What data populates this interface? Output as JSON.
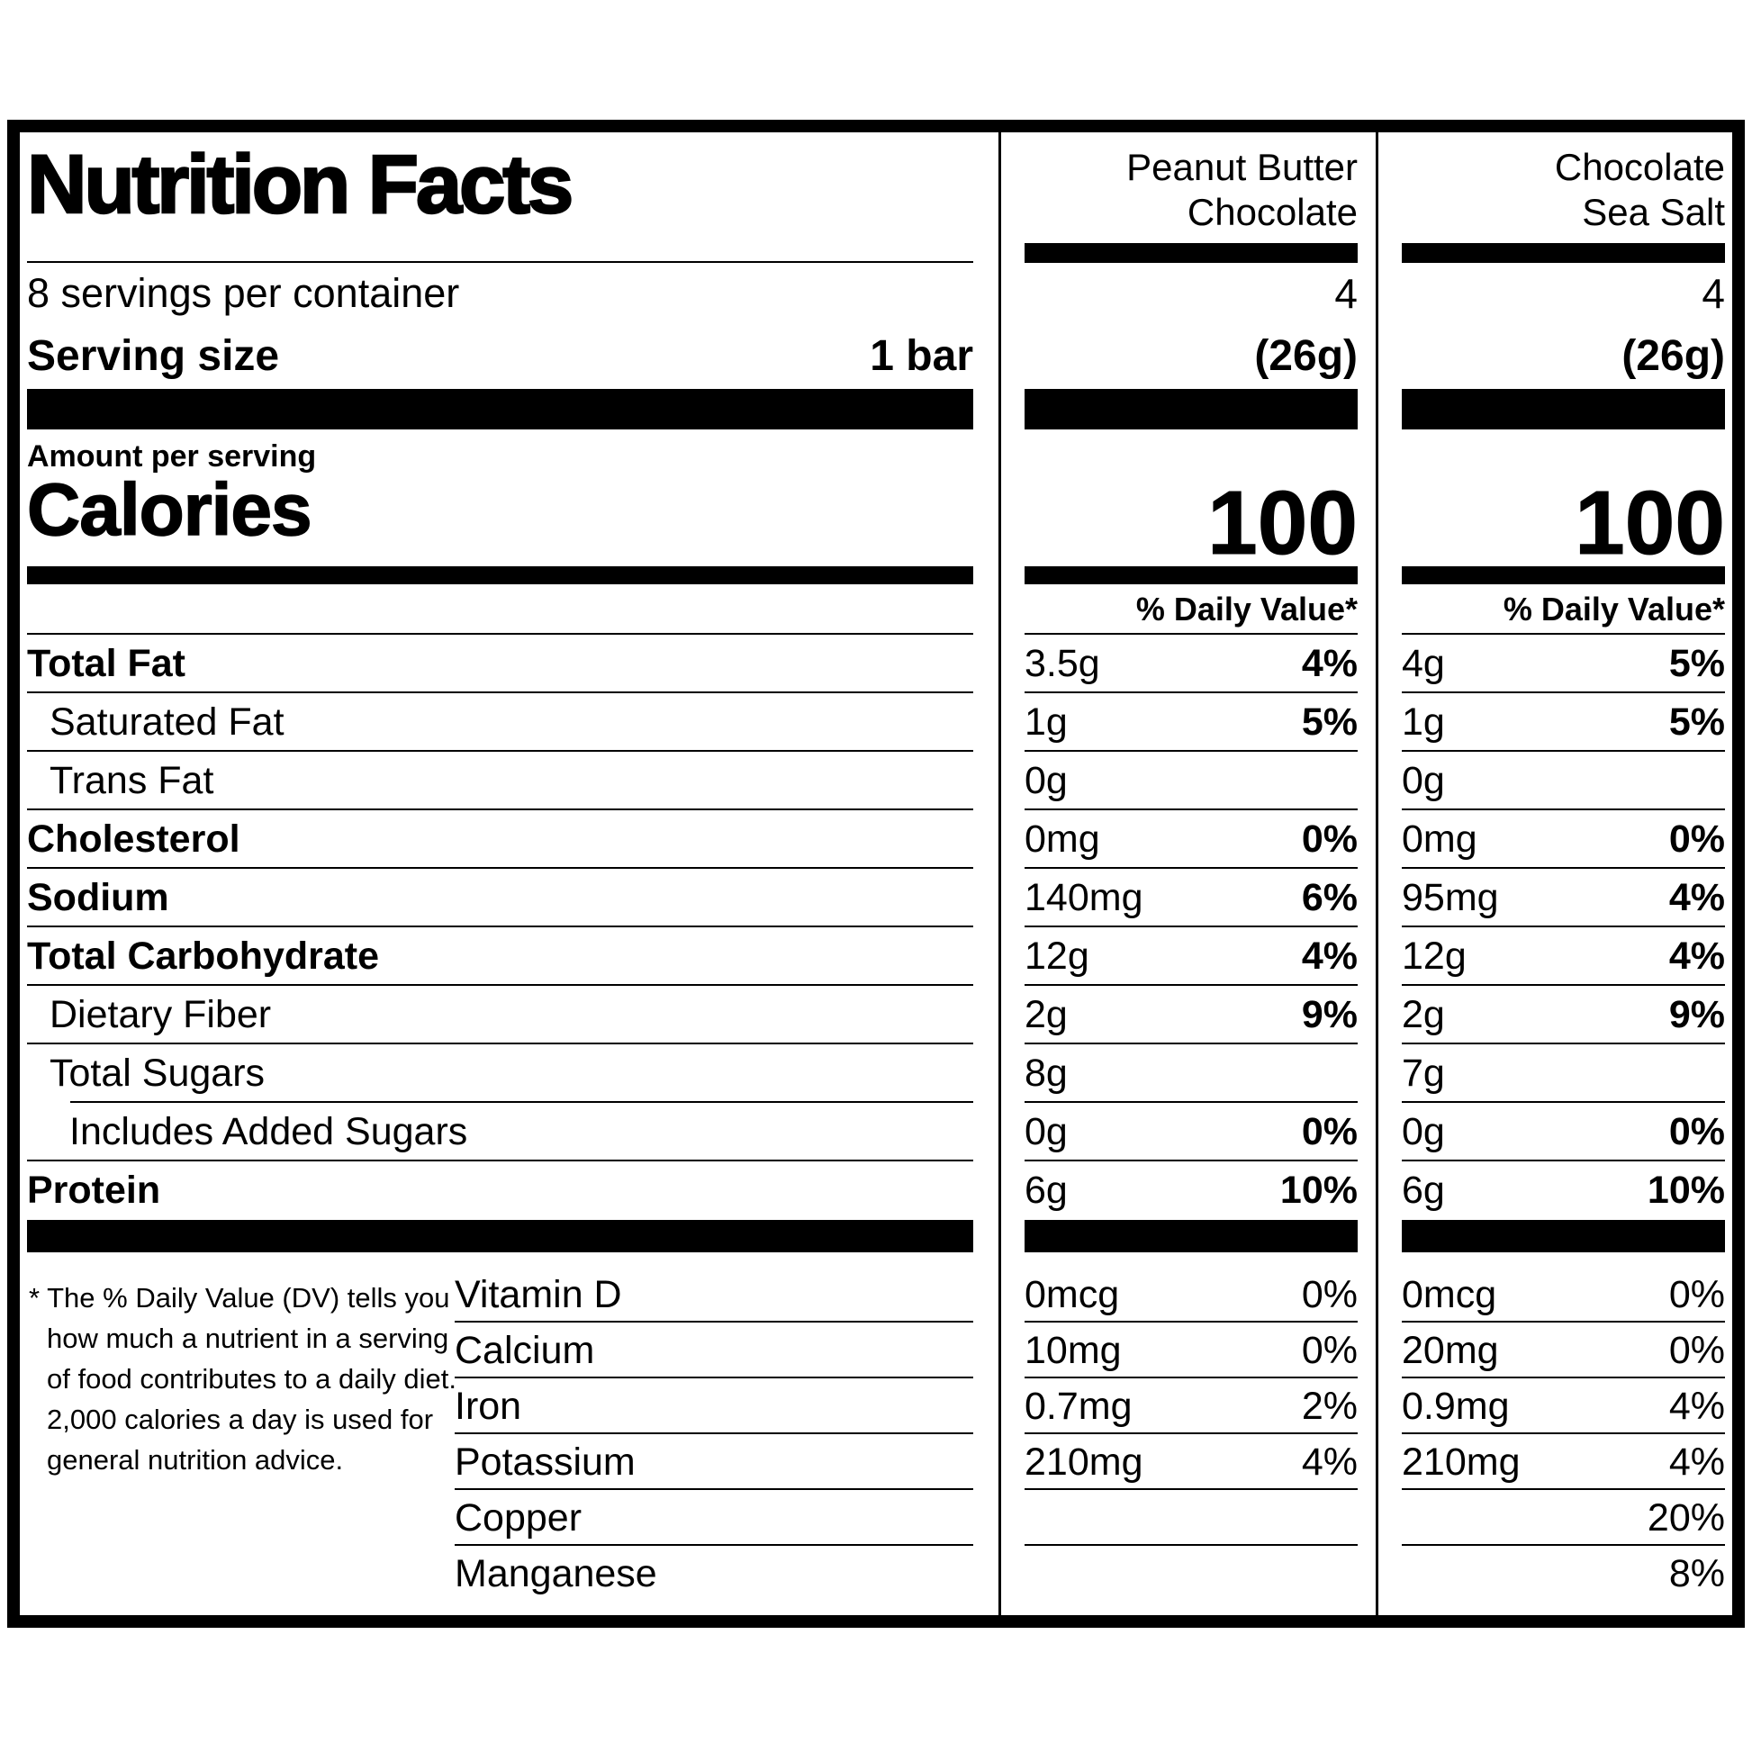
{
  "colors": {
    "ink": "#000000",
    "paper": "#ffffff"
  },
  "header": {
    "title": "Nutrition Facts",
    "servings_per_container": "8 servings per container",
    "serving_size_label": "Serving size",
    "serving_size_value": "1 bar",
    "amount_per_serving_label": "Amount per serving",
    "calories_label": "Calories",
    "daily_value_header_col1": "% Daily Value*",
    "daily_value_header_col2": "% Daily Value*"
  },
  "products": [
    {
      "name_line1": "Peanut Butter",
      "name_line2": "Chocolate",
      "servings_per_container": "4",
      "serving_size": "(26g)",
      "calories": "100"
    },
    {
      "name_line1": "Chocolate",
      "name_line2": "Sea Salt",
      "servings_per_container": "4",
      "serving_size": "(26g)",
      "calories": "100"
    }
  ],
  "nutrients": [
    {
      "name": "Total Fat",
      "p1_amount": "3.5g",
      "p1_dv": "4%",
      "p2_amount": "4g",
      "p2_dv": "5%"
    },
    {
      "name": "Saturated Fat",
      "p1_amount": "1g",
      "p1_dv": "5%",
      "p2_amount": "1g",
      "p2_dv": "5%"
    },
    {
      "name": "Trans Fat",
      "p1_amount": "0g",
      "p1_dv": "",
      "p2_amount": "0g",
      "p2_dv": ""
    },
    {
      "name": "Cholesterol",
      "p1_amount": "0mg",
      "p1_dv": "0%",
      "p2_amount": "0mg",
      "p2_dv": "0%"
    },
    {
      "name": "Sodium",
      "p1_amount": "140mg",
      "p1_dv": "6%",
      "p2_amount": "95mg",
      "p2_dv": "4%"
    },
    {
      "name": "Total Carbohydrate",
      "p1_amount": "12g",
      "p1_dv": "4%",
      "p2_amount": "12g",
      "p2_dv": "4%"
    },
    {
      "name": "Dietary Fiber",
      "p1_amount": "2g",
      "p1_dv": "9%",
      "p2_amount": "2g",
      "p2_dv": "9%"
    },
    {
      "name": "Total Sugars",
      "p1_amount": "8g",
      "p1_dv": "",
      "p2_amount": "7g",
      "p2_dv": ""
    },
    {
      "name": "Includes Added Sugars",
      "p1_amount": "0g",
      "p1_dv": "0%",
      "p2_amount": "0g",
      "p2_dv": "0%"
    },
    {
      "name": "Protein",
      "p1_amount": "6g",
      "p1_dv": "10%",
      "p2_amount": "6g",
      "p2_dv": "10%"
    }
  ],
  "vitamins": [
    {
      "name": "Vitamin D",
      "p1_amount": "0mcg",
      "p1_dv": "0%",
      "p2_amount": "0mcg",
      "p2_dv": "0%"
    },
    {
      "name": "Calcium",
      "p1_amount": "10mg",
      "p1_dv": "0%",
      "p2_amount": "20mg",
      "p2_dv": "0%"
    },
    {
      "name": "Iron",
      "p1_amount": "0.7mg",
      "p1_dv": "2%",
      "p2_amount": "0.9mg",
      "p2_dv": "4%"
    },
    {
      "name": "Potassium",
      "p1_amount": "210mg",
      "p1_dv": "4%",
      "p2_amount": "210mg",
      "p2_dv": "4%"
    },
    {
      "name": "Copper",
      "p1_amount": "",
      "p1_dv": "",
      "p2_amount": "",
      "p2_dv": "20%"
    },
    {
      "name": "Manganese",
      "p1_amount": "",
      "p1_dv": "",
      "p2_amount": "",
      "p2_dv": "8%"
    }
  ],
  "footnote": "* The % Daily Value (DV) tells you\nhow much a nutrient in a serving\nof food contributes to a daily diet.\n2,000 calories a day is used for\ngeneral nutrition advice."
}
